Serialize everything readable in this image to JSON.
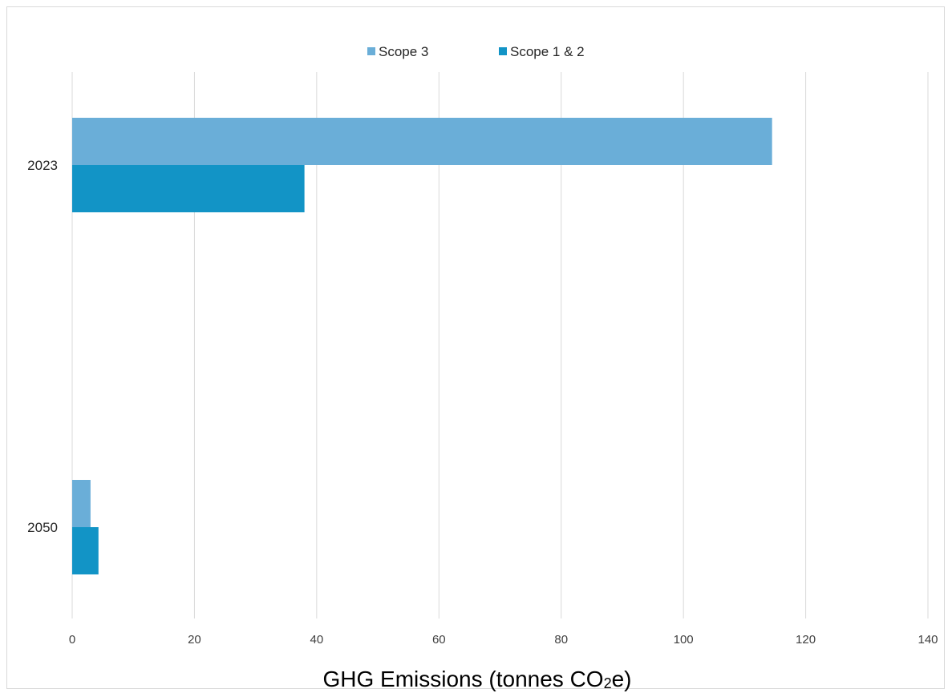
{
  "chart_data": {
    "type": "bar",
    "orientation": "horizontal",
    "categories": [
      "2023",
      "2050"
    ],
    "series": [
      {
        "name": "Scope 3",
        "color": "#6aaed8",
        "values": [
          114.5,
          3
        ]
      },
      {
        "name": "Scope 1 & 2",
        "color": "#1294c6",
        "values": [
          38,
          4.3
        ]
      }
    ],
    "xlabel_prefix": "GHG Emissions (tonnes CO",
    "xlabel_sub": "2",
    "xlabel_suffix": "e)",
    "xlim": [
      0,
      140
    ],
    "xticks": [
      "0",
      "20",
      "40",
      "60",
      "80",
      "100",
      "120",
      "140"
    ],
    "grid": true,
    "legend_position": "top-center"
  }
}
